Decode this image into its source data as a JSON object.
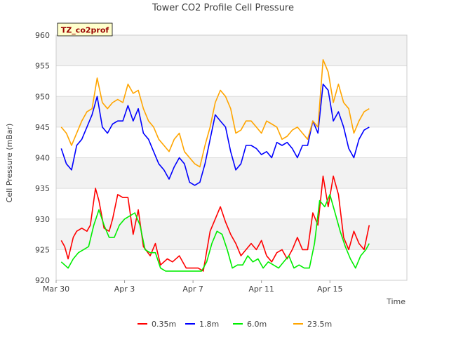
{
  "chart_data": {
    "type": "line",
    "title": "Tower CO2 Profile Cell Pressure",
    "xlabel": "Time",
    "ylabel": "Cell Pressure (mBar)",
    "site_tag": "TZ_co2prof",
    "ylim": [
      920,
      960
    ],
    "y_ticks": [
      920,
      925,
      930,
      935,
      940,
      945,
      950,
      955,
      960
    ],
    "xlim": [
      0,
      20.5
    ],
    "x_ticks": [
      {
        "value": 0,
        "label": "Mar 30"
      },
      {
        "value": 4,
        "label": "Apr 3"
      },
      {
        "value": 8,
        "label": "Apr 7"
      },
      {
        "value": 12,
        "label": "Apr 11"
      },
      {
        "value": 16,
        "label": "Apr 15"
      }
    ],
    "x_unit": "days since Mar 30",
    "grid": true,
    "legend_position": "bottom",
    "series": [
      {
        "name": "0.35m",
        "color": "#ff0000",
        "x": [
          0.3,
          0.5,
          0.7,
          1.0,
          1.2,
          1.5,
          1.8,
          2.0,
          2.3,
          2.5,
          2.8,
          3.1,
          3.3,
          3.6,
          3.9,
          4.2,
          4.5,
          4.8,
          5.1,
          5.5,
          5.8,
          6.1,
          6.5,
          6.8,
          7.2,
          7.6,
          8.0,
          8.3,
          8.6,
          9.0,
          9.3,
          9.6,
          9.9,
          10.2,
          10.5,
          10.8,
          11.1,
          11.4,
          11.7,
          12.0,
          12.3,
          12.6,
          12.9,
          13.2,
          13.5,
          13.8,
          14.1,
          14.4,
          14.7,
          15.0,
          15.3,
          15.6,
          15.9,
          16.2,
          16.5,
          16.8,
          17.1,
          17.4,
          17.7,
          18.0,
          18.3
        ],
        "y": [
          926.5,
          925.5,
          923.5,
          927,
          928,
          928.5,
          928,
          929,
          935,
          933,
          928.5,
          928,
          930,
          934,
          933.5,
          933.5,
          927.5,
          931.5,
          925.5,
          924,
          926,
          922.5,
          923.5,
          923,
          924,
          922,
          922,
          922,
          921.5,
          928,
          930,
          932,
          929.5,
          927.5,
          926,
          924,
          925,
          926,
          925,
          926.5,
          924,
          923,
          924.5,
          925,
          923.5,
          925,
          927,
          925,
          925,
          931,
          929,
          937,
          932,
          937,
          934,
          927,
          925,
          928,
          926,
          925,
          929
        ]
      },
      {
        "name": "1.8m",
        "color": "#0000ff",
        "x": [
          0.3,
          0.6,
          0.9,
          1.2,
          1.5,
          1.8,
          2.1,
          2.4,
          2.7,
          3.0,
          3.3,
          3.6,
          3.9,
          4.2,
          4.5,
          4.8,
          5.1,
          5.4,
          5.7,
          6.0,
          6.3,
          6.6,
          6.9,
          7.2,
          7.5,
          7.8,
          8.1,
          8.4,
          8.7,
          9.0,
          9.3,
          9.6,
          9.9,
          10.2,
          10.5,
          10.8,
          11.1,
          11.4,
          11.7,
          12.0,
          12.3,
          12.6,
          12.9,
          13.2,
          13.5,
          13.8,
          14.1,
          14.4,
          14.7,
          15.0,
          15.3,
          15.6,
          15.9,
          16.2,
          16.5,
          16.8,
          17.1,
          17.4,
          17.7,
          18.0,
          18.3
        ],
        "y": [
          941.5,
          939,
          938,
          942,
          943,
          945,
          947,
          950,
          945,
          944,
          945.5,
          946,
          946,
          948.5,
          946,
          948,
          944,
          943,
          941,
          939,
          938,
          936.5,
          938.5,
          940,
          939,
          936,
          935.5,
          936,
          939,
          943,
          947,
          946,
          945,
          941,
          938,
          939,
          942,
          942,
          941.5,
          940.5,
          941,
          940,
          942.5,
          942,
          942.5,
          941.5,
          940,
          942,
          942,
          946,
          944,
          952,
          951,
          946,
          947.5,
          945,
          941.5,
          940,
          943,
          944.5,
          945
        ]
      },
      {
        "name": "6.0m",
        "color": "#00ee00",
        "x": [
          0.3,
          0.5,
          0.7,
          1.0,
          1.3,
          1.6,
          1.9,
          2.2,
          2.5,
          2.8,
          3.1,
          3.4,
          3.7,
          4.0,
          4.3,
          4.6,
          4.9,
          5.2,
          5.5,
          5.8,
          6.1,
          6.4,
          6.7,
          7.0,
          7.3,
          7.6,
          7.9,
          8.2,
          8.5,
          8.8,
          9.1,
          9.4,
          9.7,
          10.0,
          10.3,
          10.6,
          10.9,
          11.2,
          11.5,
          11.8,
          12.1,
          12.4,
          12.7,
          13.0,
          13.3,
          13.6,
          13.9,
          14.2,
          14.5,
          14.8,
          15.1,
          15.4,
          15.7,
          16.0,
          16.3,
          16.6,
          16.9,
          17.2,
          17.5,
          17.8,
          18.1,
          18.3
        ],
        "y": [
          923,
          922.5,
          922,
          923.5,
          924.5,
          925,
          925.5,
          929,
          931.5,
          929,
          927,
          927,
          929,
          930,
          930.5,
          931,
          929,
          925,
          924.5,
          924.5,
          922,
          921.5,
          921.5,
          921.5,
          921.5,
          921.5,
          921.5,
          921.5,
          921.5,
          923,
          926,
          928,
          927.5,
          925,
          922,
          922.5,
          922.5,
          924,
          923,
          923.5,
          922,
          923,
          922.5,
          922,
          923,
          924,
          922,
          922.5,
          922,
          922,
          926,
          933,
          932,
          934,
          931,
          928,
          925.5,
          923.5,
          922,
          924,
          925,
          926
        ]
      },
      {
        "name": "23.5m",
        "color": "#ffa500",
        "x": [
          0.3,
          0.6,
          0.9,
          1.2,
          1.5,
          1.8,
          2.1,
          2.4,
          2.7,
          3.0,
          3.3,
          3.6,
          3.9,
          4.2,
          4.5,
          4.8,
          5.1,
          5.4,
          5.7,
          6.0,
          6.3,
          6.6,
          6.9,
          7.2,
          7.5,
          7.8,
          8.1,
          8.4,
          8.7,
          9.0,
          9.3,
          9.6,
          9.9,
          10.2,
          10.5,
          10.8,
          11.1,
          11.4,
          11.7,
          12.0,
          12.3,
          12.6,
          12.9,
          13.2,
          13.5,
          13.8,
          14.1,
          14.4,
          14.7,
          15.0,
          15.3,
          15.6,
          15.9,
          16.2,
          16.5,
          16.8,
          17.1,
          17.4,
          17.7,
          18.0,
          18.3
        ],
        "y": [
          945,
          944,
          942,
          944,
          946,
          947.5,
          948,
          953,
          949,
          948,
          949,
          949.5,
          949,
          952,
          950.5,
          951,
          948,
          946,
          945,
          943,
          942,
          941,
          943,
          944,
          941,
          940,
          939,
          938.5,
          942,
          945,
          949,
          951,
          950,
          948,
          944,
          944.5,
          946,
          946,
          945,
          944,
          946,
          945.5,
          945,
          943,
          943.5,
          944.5,
          945,
          944,
          943,
          946,
          945,
          956,
          954,
          949,
          952,
          949,
          948,
          944,
          946,
          947.5,
          948
        ]
      }
    ]
  }
}
